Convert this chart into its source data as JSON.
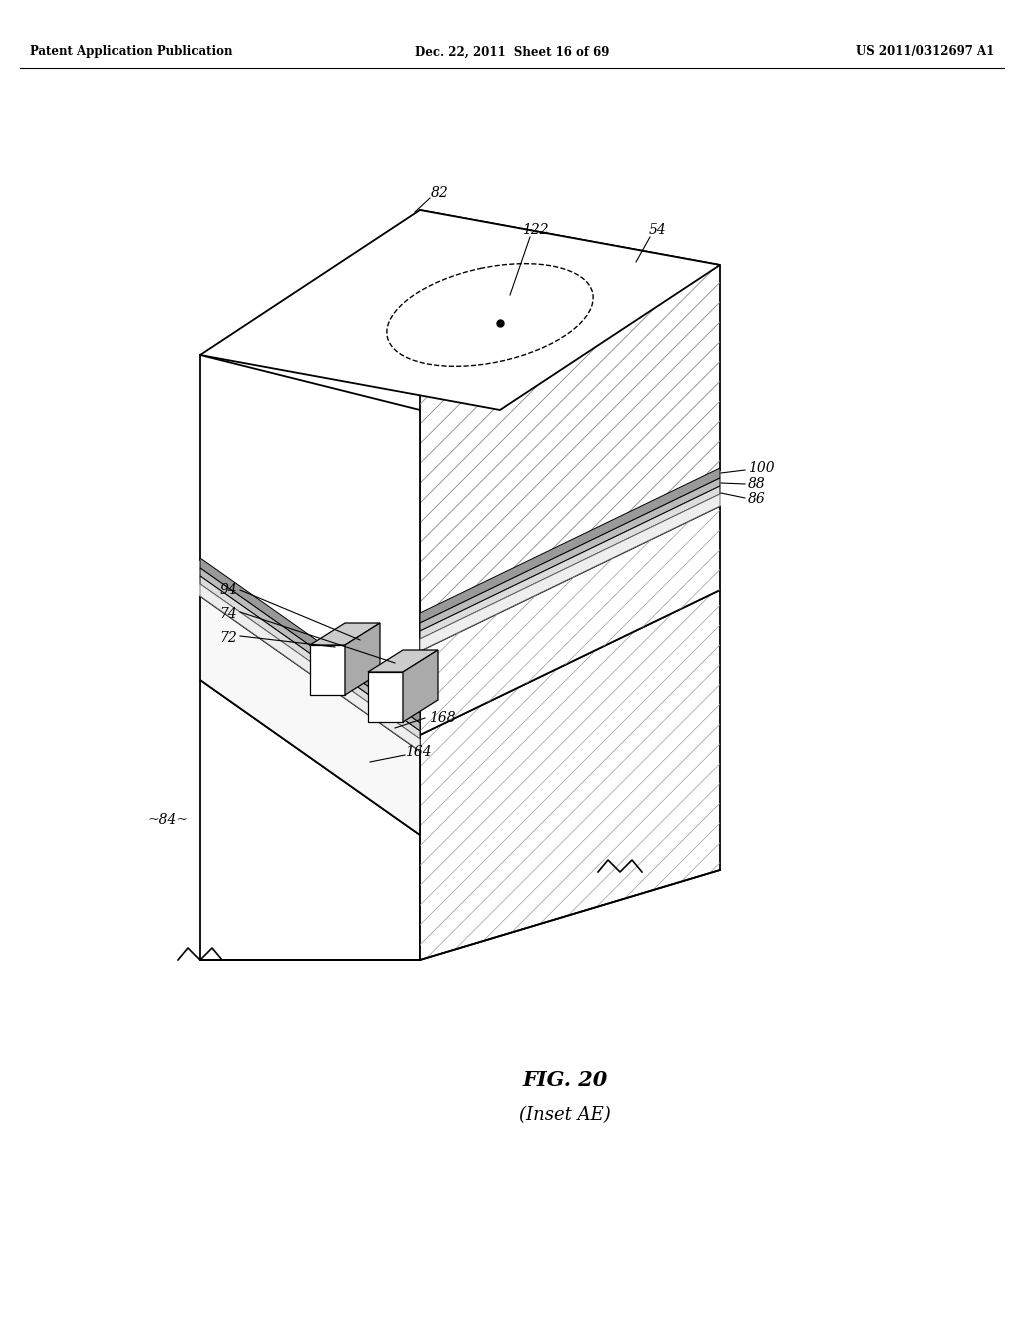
{
  "background_color": "#ffffff",
  "header_left": "Patent Application Publication",
  "header_center": "Dec. 22, 2011  Sheet 16 of 69",
  "header_right": "US 2011/0312697 A1",
  "figure_label": "FIG. 20",
  "figure_sublabel": "(Inset AE)",
  "label_fontsize": 10,
  "header_fontsize": 8.5
}
